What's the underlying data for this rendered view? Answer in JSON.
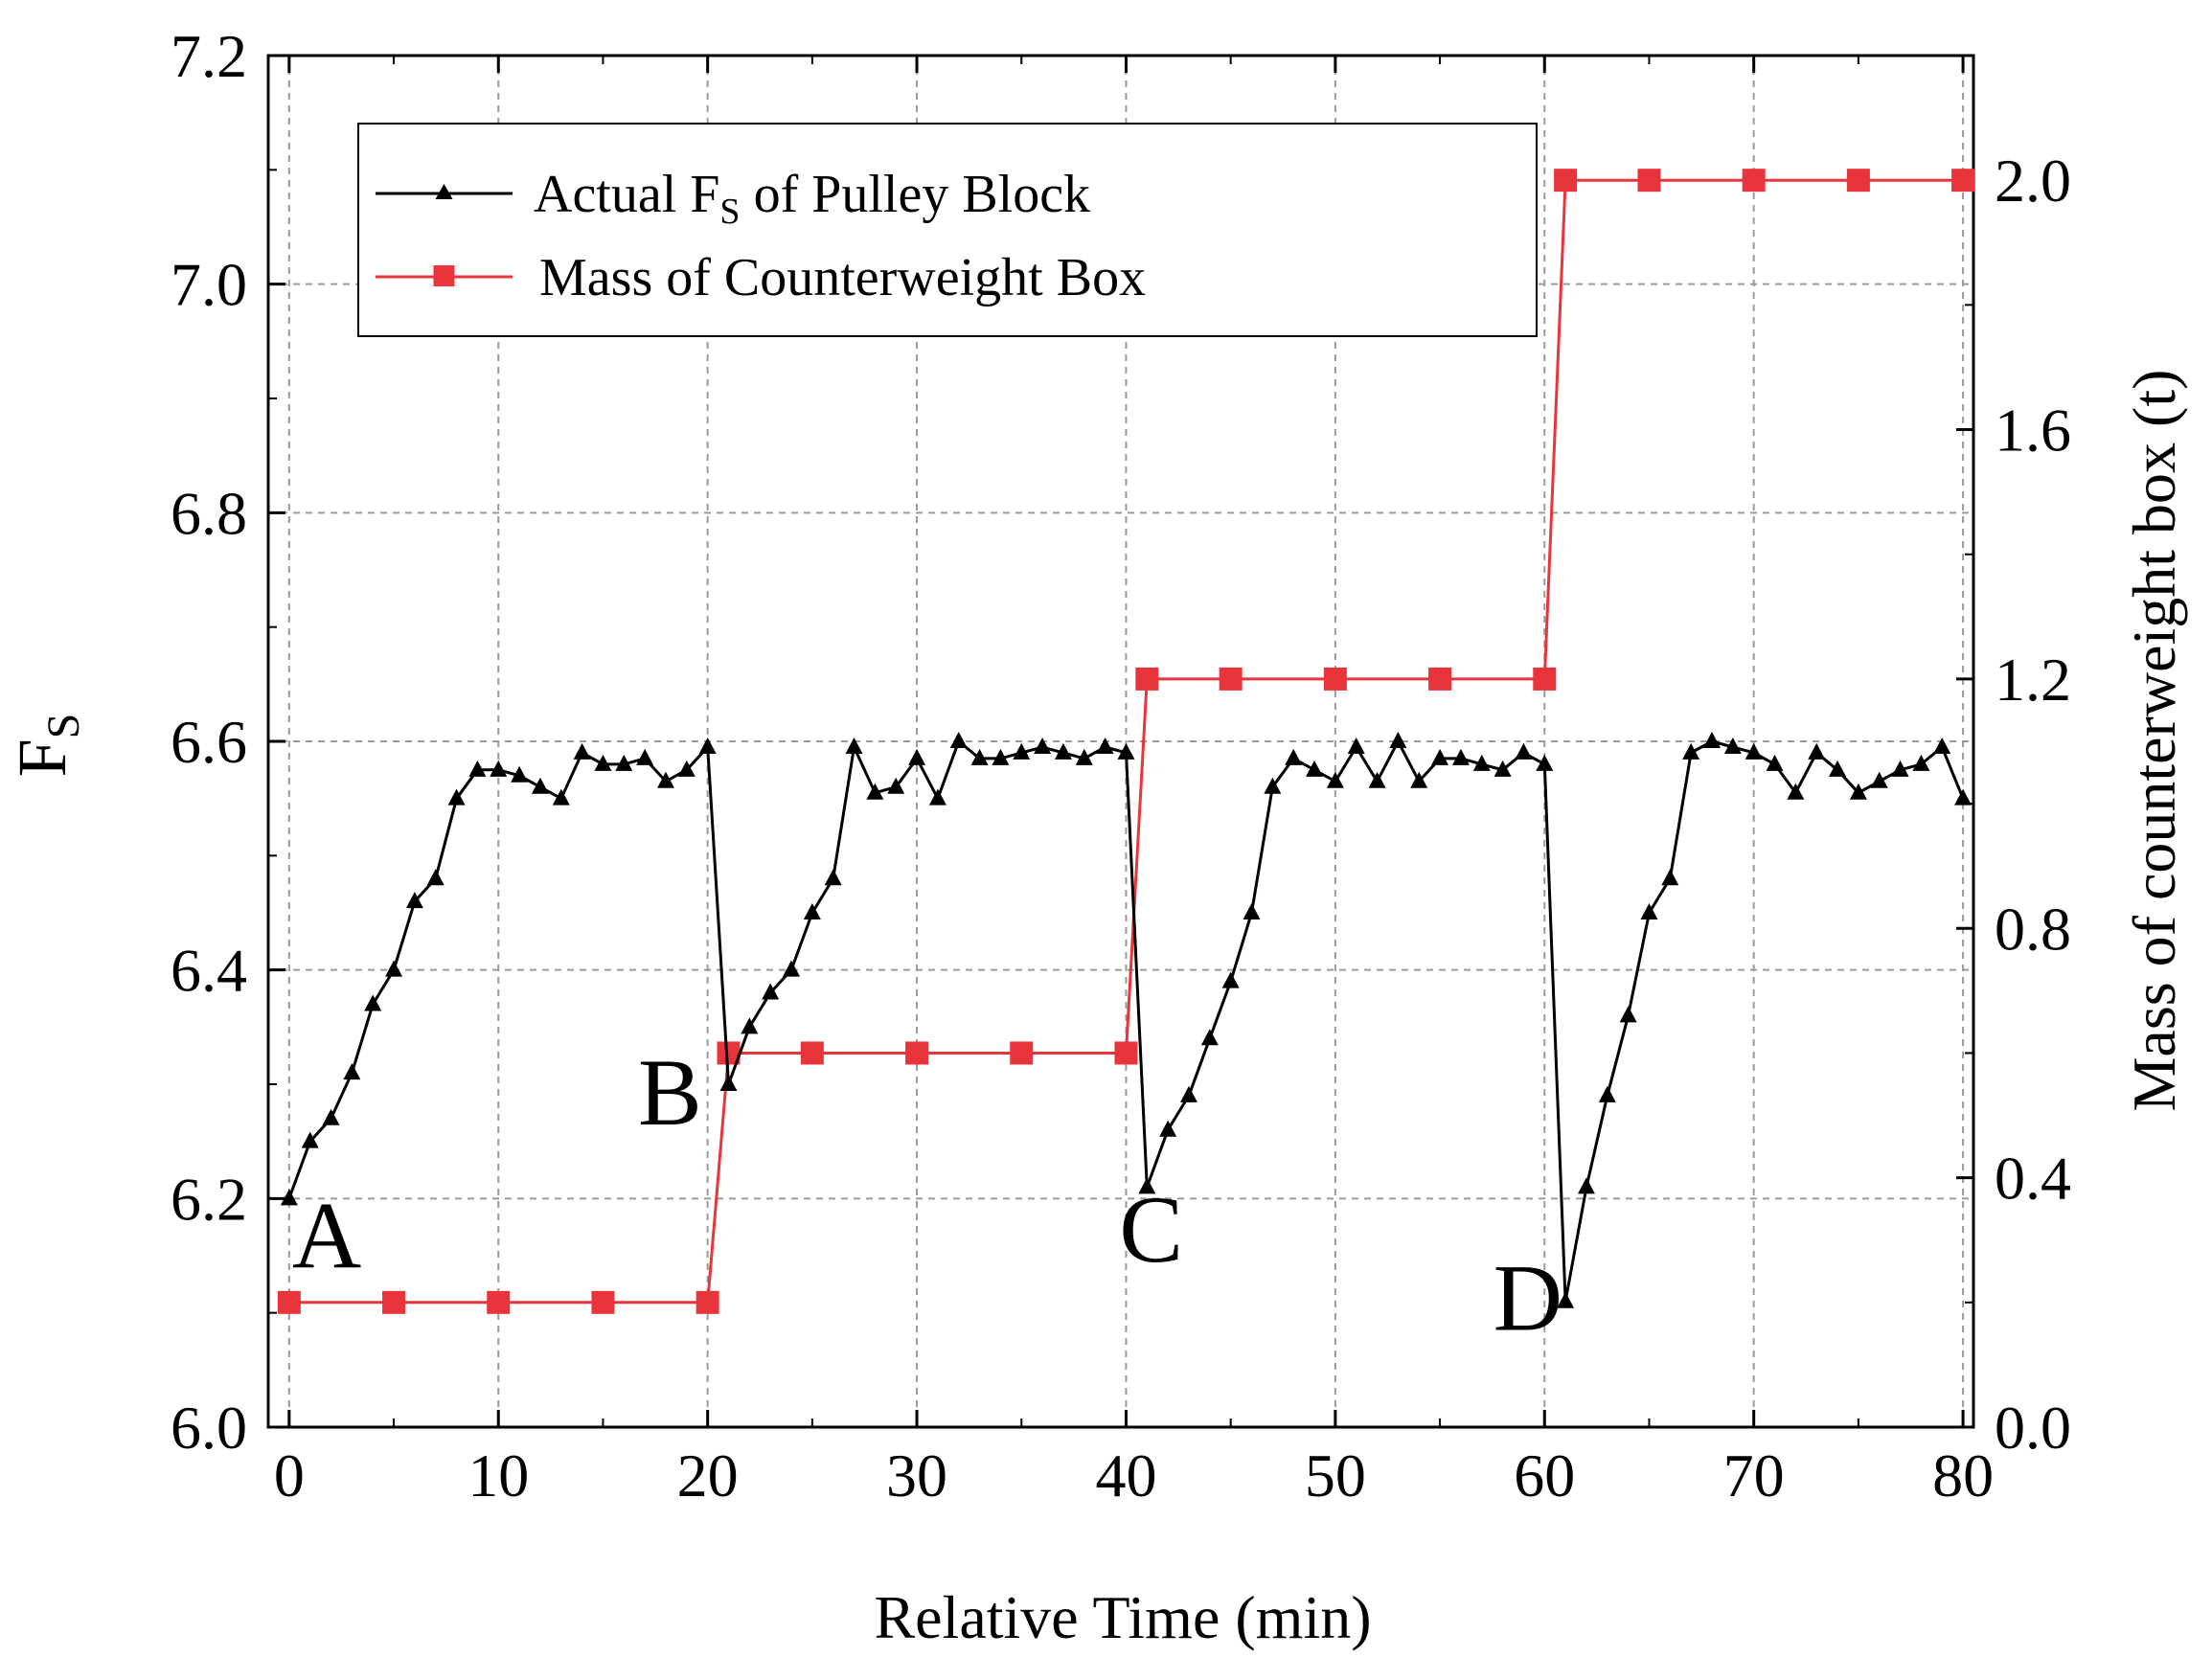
{
  "chart_data": {
    "type": "line",
    "title": "",
    "xlabel": "Relative Time (min)",
    "ylabel_left": "F",
    "ylabel_left_sub": "S",
    "ylabel_right": "Mass of counterweight box (t)",
    "xlim": [
      -1,
      80.5
    ],
    "ylim_left": [
      6.0,
      7.2
    ],
    "ylim_right": [
      0.0,
      2.2
    ],
    "x_ticks": [
      0,
      10,
      20,
      30,
      40,
      50,
      60,
      70,
      80
    ],
    "x_tick_labels": [
      "0",
      "10",
      "20",
      "30",
      "40",
      "50",
      "60",
      "70",
      "80"
    ],
    "y_left_ticks": [
      6.0,
      6.2,
      6.4,
      6.6,
      6.8,
      7.0,
      7.2
    ],
    "y_left_tick_labels": [
      "6.0",
      "6.2",
      "6.4",
      "6.6",
      "6.8",
      "7.0",
      "7.2"
    ],
    "y_right_ticks": [
      0.0,
      0.4,
      0.8,
      1.2,
      1.6,
      2.0
    ],
    "y_right_tick_labels": [
      "0.0",
      "0.4",
      "0.8",
      "1.2",
      "1.6",
      "2.0"
    ],
    "grid": true,
    "legend_position": "top-left",
    "series": [
      {
        "name": "Actual F",
        "name_sub": "S",
        "name_suffix": " of Pulley Block",
        "axis": "left",
        "color": "#000000",
        "marker": "triangle",
        "x": [
          0,
          1,
          2,
          3,
          4,
          5,
          6,
          7,
          8,
          9,
          10,
          11,
          12,
          13,
          14,
          15,
          16,
          17,
          18,
          19,
          20,
          21,
          22,
          23,
          24,
          25,
          26,
          27,
          28,
          29,
          30,
          31,
          32,
          33,
          34,
          35,
          36,
          37,
          38,
          39,
          40,
          41,
          42,
          43,
          44,
          45,
          46,
          47,
          48,
          49,
          50,
          51,
          52,
          53,
          54,
          55,
          56,
          57,
          58,
          59,
          60,
          61,
          62,
          63,
          64,
          65,
          66,
          67,
          68,
          69,
          70,
          71,
          72,
          73,
          74,
          75,
          76,
          77,
          78,
          79,
          80
        ],
        "y": [
          6.2,
          6.25,
          6.27,
          6.31,
          6.37,
          6.4,
          6.46,
          6.48,
          6.55,
          6.575,
          6.575,
          6.57,
          6.56,
          6.55,
          6.59,
          6.58,
          6.58,
          6.585,
          6.565,
          6.575,
          6.595,
          6.3,
          6.35,
          6.38,
          6.4,
          6.45,
          6.48,
          6.595,
          6.555,
          6.56,
          6.585,
          6.55,
          6.6,
          6.585,
          6.585,
          6.59,
          6.595,
          6.59,
          6.585,
          6.595,
          6.59,
          6.21,
          6.26,
          6.29,
          6.34,
          6.39,
          6.45,
          6.56,
          6.585,
          6.575,
          6.565,
          6.595,
          6.565,
          6.6,
          6.565,
          6.585,
          6.585,
          6.58,
          6.575,
          6.59,
          6.58,
          6.11,
          6.21,
          6.29,
          6.36,
          6.45,
          6.48,
          6.59,
          6.6,
          6.595,
          6.59,
          6.58,
          6.555,
          6.59,
          6.575,
          6.555,
          6.565,
          6.575,
          6.58,
          6.595,
          6.55
        ]
      },
      {
        "name": "Mass of Counterweight Box",
        "axis": "right",
        "color": "#e8353b",
        "marker": "square",
        "x": [
          0,
          5,
          10,
          15,
          20,
          21,
          25,
          30,
          35,
          40,
          41,
          45,
          50,
          55,
          60,
          61,
          65,
          70,
          75,
          80
        ],
        "y": [
          0.2,
          0.2,
          0.2,
          0.2,
          0.2,
          0.6,
          0.6,
          0.6,
          0.6,
          0.6,
          1.2,
          1.2,
          1.2,
          1.2,
          1.2,
          2.0,
          2.0,
          2.0,
          2.0,
          2.0
        ]
      }
    ],
    "annotations": [
      {
        "text": "A",
        "x": 1.8,
        "y": 6.14
      },
      {
        "text": "B",
        "x": 18.2,
        "y": 6.265
      },
      {
        "text": "C",
        "x": 41.2,
        "y": 6.145
      },
      {
        "text": "D",
        "x": 59.2,
        "y": 6.085
      }
    ]
  }
}
